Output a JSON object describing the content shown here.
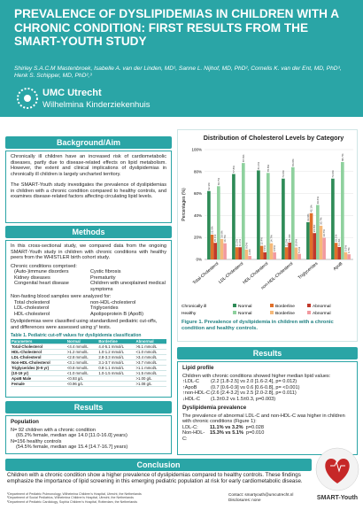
{
  "header": {
    "title": "PREVALENCE OF DYSLIPIDEMIAS IN CHILDREN WITH A CHRONIC CONDITION: FIRST RESULTS FROM THE SMART-YOUTH STUDY",
    "authors": "Shirley S.A.C.M Mastenbroek, Isabelle A. van der Linden, MD¹, Sanne L. Nijhof, MD, PhD², Cornelis K. van der Ent, MD, PhD³, Henk S. Schipper, MD, PhD²,³",
    "logo_name": "UMC Utrecht",
    "logo_subtitle": "Wilhelmina Kinderziekenhuis"
  },
  "background": {
    "heading": "Background/Aim",
    "paragraphs": [
      "Chronically ill children have an increased risk of cardiometabolic diseases, partly due to disease-related effects on lipid metabolism. However, the extent and clinical implications of dyslipidemias in chronically ill children is largely uncharted territory.",
      "The SMART-Youth study investigates the prevalence of dyslipidemias in children with a chronic condition compared to healthy controls, and examines disease-related factors affecting circulating lipid levels."
    ]
  },
  "methods": {
    "heading": "Methods",
    "intro": "In this cross-sectional study, we compared data from the ongoing SMART-Youth study in children with chronic conditions with healthy peers from the WHISTLER birth cohort study.",
    "conditions_label": "Chronic conditions comprised:",
    "conditions": [
      "(Auto-)immune disorders",
      "Cystic fibrosis",
      "Kidney diseases",
      "Prematurity",
      "Congenital heart disease",
      "Children with unexplained medical symptoms"
    ],
    "samples_label": "Non-fasting blood samples were analyzed for:",
    "samples": [
      "Total cholesterol",
      "non-HDL-cholesterol",
      "LDL-cholesterol",
      "Triglycerides",
      "HDL-cholesterol",
      "Apolipoprotein B (ApoB)"
    ],
    "classification": "Dyslipidemias were classified using standardized pediatric cut-offs, and differences were assessed using χ² tests."
  },
  "table": {
    "caption": "Table 1. Pediatric cut-off values for dyslipidemia classification",
    "headers": [
      "Parameters",
      "Normal",
      "Borderline",
      "Abnormal"
    ],
    "rows": [
      [
        "Total-Cholesterol",
        "<4.4 mmol/L",
        "4.4-5.1 mmol/L",
        ">5.1 mmol/L"
      ],
      [
        "HDL-Cholesterol",
        ">1.2 mmol/L",
        "1.0-1.2 mmol/L",
        "<1.0 mmol/L"
      ],
      [
        "LDL-Cholesterol",
        "<2.8 mmol/L",
        "2.8-3.3 mmol/L",
        ">3.4 mmol/L"
      ],
      [
        "Non-HDL-Cholesterol",
        "<3.1 mmol/L",
        "3.1-3.7 mmol/L",
        ">3.7 mmol/L"
      ],
      [
        "Triglycerides (0-9 yr)",
        "<0.8 mmol/L",
        "0.8-1.1 mmol/L",
        ">1.1 mmol/L"
      ],
      [
        "(10-19 yr)",
        "<1.0 mmol/L",
        "1.0-1.5 mmol/L",
        ">1.5 mmol/L"
      ],
      [
        "ApoB Male",
        "<0.93 g/L",
        null,
        ">1.00 g/L"
      ],
      [
        "Female",
        "<0.96 g/L",
        null,
        ">1.08 g/L"
      ]
    ]
  },
  "population": {
    "heading": "Results",
    "subheading": "Population",
    "lines": [
      "N= 92 children with a chronic condition",
      "(65.2% female, median age 14.0 [11.0-16.0] years)",
      "N=156 healthy controls",
      "(54.5% female, median age 15.4 [14.7-16.7] years)"
    ]
  },
  "chart_data": {
    "type": "bar",
    "title": "Distribution of Cholesterol Levels by Category",
    "y_label": "Percentages (%)",
    "categories": [
      "Total-Cholesterol",
      "LDL-Cholesterol",
      "HDL-Cholesterol",
      "non-HDL-Cholesterol",
      "Triglycerides",
      "ApoB"
    ],
    "ylim": [
      0,
      100
    ],
    "yticks": [
      {
        "value": 0,
        "label": "0%"
      },
      {
        "value": 20,
        "label": "20%"
      },
      {
        "value": 40,
        "label": "40%"
      },
      {
        "value": 60,
        "label": "60%"
      },
      {
        "value": 80,
        "label": "80%"
      },
      {
        "value": 100,
        "label": "100%"
      }
    ],
    "grid": true,
    "series": [
      {
        "group": "Chronically ill",
        "name": "Normal",
        "color": "#2e8b57",
        "values": [
          62.3,
          77.8,
          81.1,
          73.6,
          33.9,
          73.6
        ],
        "value_labels": [
          "62.3%",
          "77.8%",
          "81.1%",
          "73.6%",
          "33.9%",
          "73.6%"
        ]
      },
      {
        "group": "Chronically ill",
        "name": "Borderline",
        "color": "#e0702a",
        "values": [
          22.6,
          11.1,
          12.4,
          11.1,
          42.1,
          15.1
        ],
        "value_labels": [
          "22.6%",
          "11.1%",
          "12.4%",
          "11.1%",
          "42.1%",
          "15.1%"
        ]
      },
      {
        "group": "Chronically ill",
        "name": "Abnormal",
        "color": "#c0392b",
        "values": [
          15.1,
          11.1,
          6.5,
          15.3,
          24.0,
          11.3
        ],
        "value_labels": [
          "15.1%",
          "11.1%",
          "6.5%",
          "15.3%",
          "24.0%",
          "11.3%"
        ]
      },
      {
        "group": "Healthy",
        "name": "Normal",
        "color": "#8fd19e",
        "values": [
          66.7,
          87.8,
          78.8,
          84.0,
          49.6,
          88.7
        ],
        "value_labels": [
          "66.7%",
          "87.8%",
          "78.8%",
          "84.0%",
          "49.6%",
          "88.7%"
        ]
      },
      {
        "group": "Healthy",
        "name": "Borderline",
        "color": "#f5b97a",
        "values": [
          18.6,
          9.0,
          14.7,
          10.9,
          30.7,
          6.6
        ],
        "value_labels": [
          "18.6%",
          "9.0%",
          "14.7%",
          "10.9%",
          "30.7%",
          "6.6%"
        ]
      },
      {
        "group": "Healthy",
        "name": "Abnormal",
        "color": "#f19aa0",
        "values": [
          14.7,
          3.2,
          6.5,
          5.1,
          19.7,
          4.7
        ],
        "value_labels": [
          "14.7%",
          "3.2%",
          "6.5%",
          "5.1%",
          "19.7%",
          "4.7%"
        ]
      }
    ]
  },
  "figure_caption": "Figure 1. Prevalence of dyslipidemia in children with a chronic condition and healthy controls.",
  "results": {
    "heading": "Results",
    "lipid_title": "Lipid profile",
    "lipid_intro": "Children with chronic conditions showed higher median lipid values:",
    "lipid_rows": [
      [
        "↑LDL-C",
        "(2.2 [1.8-2.5] vs 2.0 [1.6-2.4], p= 0.012)"
      ],
      [
        "↑ApoB",
        "(0.7 [0.6-0.9] vs 0.6 [0.6-0.8], p= <0.001)"
      ],
      [
        "↑non-HDL-C",
        "(2.6 [2.4-3.2] vs 2.5 [2.0-2.8], p= 0.011)"
      ],
      [
        "↓HDL-C",
        "(1.3±0.2 vs 1.5±0.3, p=0.003)"
      ]
    ],
    "prevalence_title": "Dyslipidemia prevalence",
    "prevalence_text": "The prevalence of abnormal LDL-C and non-HDL-C was higher in children with chronic conditions (Figure 1):",
    "prevalence_rows": [
      [
        "LDL-C:",
        "11.1% vs 3.2%",
        "p=0.028"
      ],
      [
        "Non-HDL-C:",
        "15.3% vs 5.1%",
        "p=0.010"
      ]
    ]
  },
  "conclusion": {
    "heading": "Conclusion",
    "text": "Children with a chronic condition show a higher prevalence of dyslipidemias compared to healthy controls. These findings emphasize the importance of lipid screening in this emerging pediatric population at risk for early cardiometabolic disease."
  },
  "footer": {
    "affiliations": [
      "¹Department of Pediatric Pulmonology, Wilhelmina Children's Hospital, Utrecht, the Netherlands",
      "²Department of Social Pediatrics, Wilhelmina Children's Hospital, Utrecht, the Netherlands",
      "³Department of Pediatric Cardiology, Sophia Children's Hospital, Rotterdam, the Netherlands"
    ],
    "contact": "Contact: smartyouth@umcutrecht.nl",
    "disclosures": "Disclosures: none"
  },
  "logo": "SMART-Youth"
}
